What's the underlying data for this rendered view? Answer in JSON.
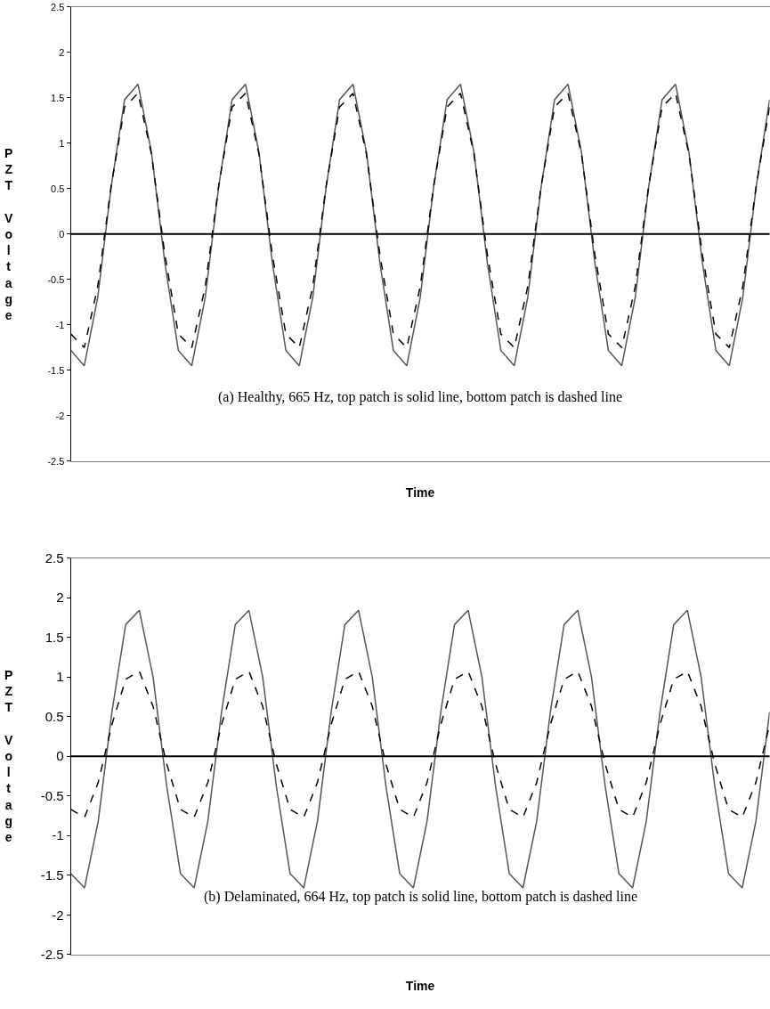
{
  "chart_data": [
    {
      "type": "line",
      "xlabel": "Time",
      "ylabel": "PZT Voltage",
      "tick_labels": "y",
      "categories": [
        null,
        null,
        null,
        null,
        null,
        null,
        null,
        null,
        null,
        null,
        null,
        null,
        null,
        null,
        null,
        null,
        null,
        null,
        null,
        null,
        null,
        null,
        null,
        null,
        null,
        null,
        null,
        null,
        null,
        null,
        null,
        null,
        null,
        null,
        null,
        null,
        null,
        null,
        null,
        null,
        null,
        null,
        null,
        null,
        null,
        null,
        null,
        null,
        null,
        null,
        null,
        null,
        null
      ],
      "ylim": [
        -2.5,
        2.5
      ],
      "yticks": [
        -2.5,
        -2,
        -1.5,
        -1,
        -0.5,
        0,
        0.5,
        1,
        1.5,
        2,
        2.5
      ],
      "annotations": [
        "(a) Healthy, 665 Hz, top patch is solid line, bottom patch is dashed line"
      ],
      "ref_lines": [
        {
          "axis": "y",
          "value": 0,
          "color": "#000000"
        }
      ],
      "series": [
        {
          "color": "#555555",
          "line_style": "solid",
          "values": [
            -1.28,
            -1.45,
            -0.7,
            0.52,
            1.48,
            1.65,
            0.9,
            -0.32,
            -1.28,
            -1.45,
            -0.7,
            0.52,
            1.48,
            1.65,
            0.9,
            -0.32,
            -1.28,
            -1.45,
            -0.7,
            0.52,
            1.48,
            1.65,
            0.9,
            -0.32,
            -1.28,
            -1.45,
            -0.7,
            0.52,
            1.48,
            1.65,
            0.9,
            -0.32,
            -1.28,
            -1.45,
            -0.7,
            0.52,
            1.48,
            1.65,
            0.9,
            -0.32,
            -1.28,
            -1.45,
            -0.7,
            0.52,
            1.48,
            1.65,
            0.9,
            -0.32,
            -1.28,
            -1.45,
            -0.7,
            0.52,
            1.48
          ]
        },
        {
          "color": "#000000",
          "line_style": "dashed",
          "values": [
            -1.1,
            -1.25,
            -0.58,
            0.53,
            1.4,
            1.55,
            0.88,
            -0.23,
            -1.1,
            -1.25,
            -0.58,
            0.53,
            1.4,
            1.55,
            0.88,
            -0.23,
            -1.1,
            -1.25,
            -0.58,
            0.53,
            1.4,
            1.55,
            0.88,
            -0.23,
            -1.1,
            -1.25,
            -0.58,
            0.53,
            1.4,
            1.55,
            0.88,
            -0.23,
            -1.1,
            -1.25,
            -0.58,
            0.53,
            1.4,
            1.55,
            0.88,
            -0.23,
            -1.1,
            -1.25,
            -0.58,
            0.53,
            1.4,
            1.55,
            0.88,
            -0.23,
            -1.1,
            -1.25,
            -0.58,
            0.53,
            1.4
          ]
        }
      ]
    },
    {
      "type": "line",
      "xlabel": "Time",
      "ylabel": "PZT Voltage",
      "tick_labels": "y",
      "categories": [
        null,
        null,
        null,
        null,
        null,
        null,
        null,
        null,
        null,
        null,
        null,
        null,
        null,
        null,
        null,
        null,
        null,
        null,
        null,
        null,
        null,
        null,
        null,
        null,
        null,
        null,
        null,
        null,
        null,
        null,
        null,
        null,
        null,
        null,
        null,
        null,
        null,
        null,
        null,
        null,
        null,
        null,
        null,
        null,
        null,
        null,
        null,
        null,
        null,
        null,
        null,
        null
      ],
      "ylim": [
        -2.5,
        2.5
      ],
      "yticks": [
        -2.5,
        -2,
        -1.5,
        -1,
        -0.5,
        0,
        0.5,
        1,
        1.5,
        2,
        2.5
      ],
      "annotations": [
        "(b) Delaminated, 664 Hz, top patch is solid line, bottom patch is dashed line"
      ],
      "ref_lines": [
        {
          "axis": "y",
          "value": 0,
          "color": "#000000"
        }
      ],
      "series": [
        {
          "color": "#555555",
          "line_style": "solid",
          "values": [
            -1.48,
            -1.66,
            -0.82,
            0.56,
            1.66,
            1.84,
            1.0,
            -0.38,
            -1.48,
            -1.66,
            -0.82,
            0.56,
            1.66,
            1.84,
            1.0,
            -0.38,
            -1.48,
            -1.66,
            -0.82,
            0.56,
            1.66,
            1.84,
            1.0,
            -0.38,
            -1.48,
            -1.66,
            -0.82,
            0.56,
            1.66,
            1.84,
            1.0,
            -0.38,
            -1.48,
            -1.66,
            -0.82,
            0.56,
            1.66,
            1.84,
            1.0,
            -0.38,
            -1.48,
            -1.66,
            -0.82,
            0.56,
            1.66,
            1.84,
            1.0,
            -0.38,
            -1.48,
            -1.66,
            -0.82,
            0.56
          ]
        },
        {
          "color": "#000000",
          "line_style": "dashed",
          "values": [
            -0.67,
            -0.77,
            -0.33,
            0.4,
            0.97,
            1.07,
            0.63,
            -0.1,
            -0.67,
            -0.77,
            -0.33,
            0.4,
            0.97,
            1.07,
            0.63,
            -0.1,
            -0.67,
            -0.77,
            -0.33,
            0.4,
            0.97,
            1.07,
            0.63,
            -0.1,
            -0.67,
            -0.77,
            -0.33,
            0.4,
            0.97,
            1.07,
            0.63,
            -0.1,
            -0.67,
            -0.77,
            -0.33,
            0.4,
            0.97,
            1.07,
            0.63,
            -0.1,
            -0.67,
            -0.77,
            -0.33,
            0.4,
            0.97,
            1.07,
            0.63,
            -0.1,
            -0.67,
            -0.77,
            -0.33,
            0.4
          ]
        }
      ]
    }
  ]
}
